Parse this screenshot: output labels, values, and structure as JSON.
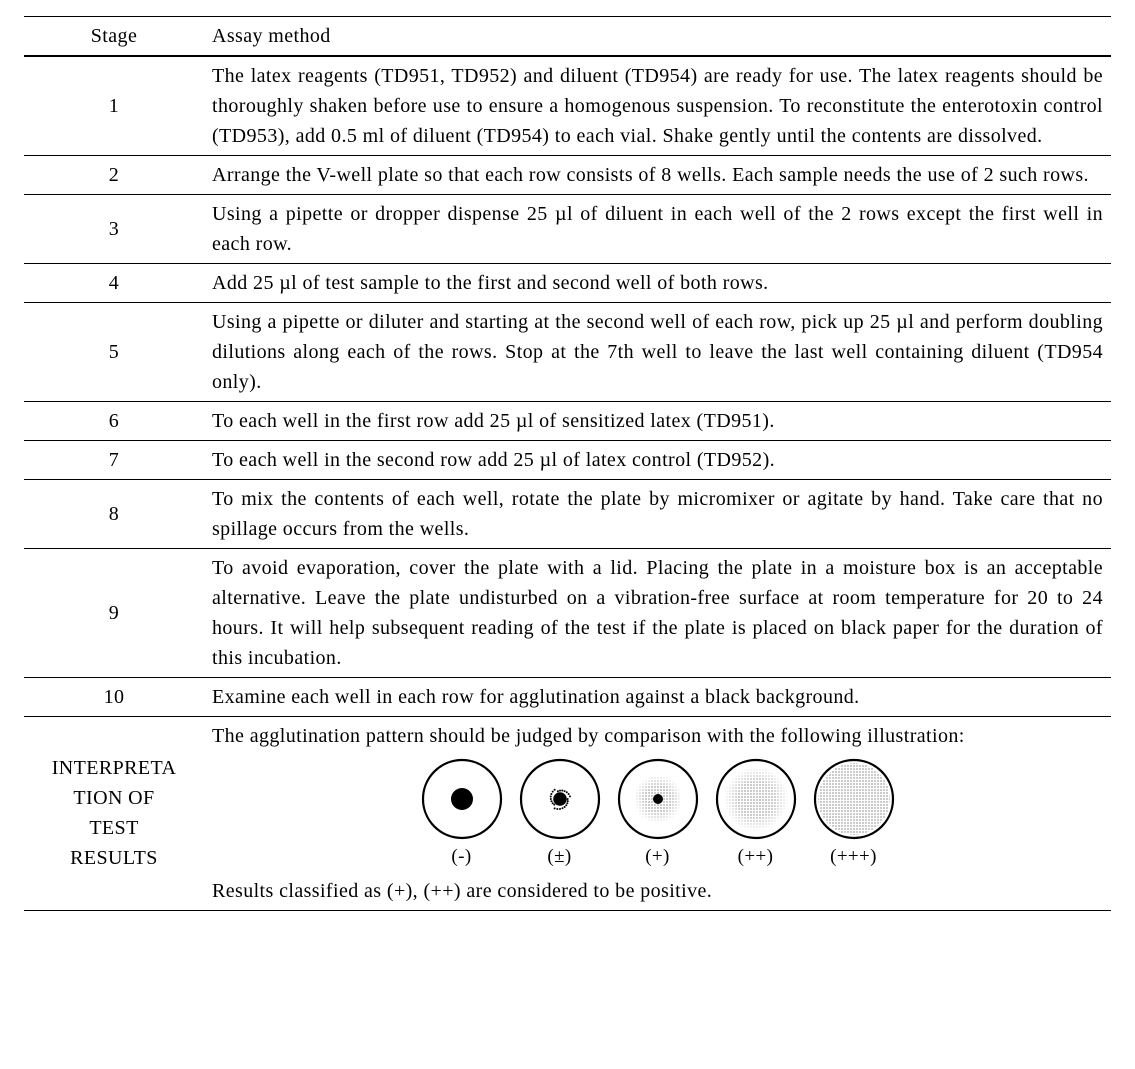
{
  "header": {
    "stage": "Stage",
    "method": "Assay method"
  },
  "rows": [
    {
      "stage": "1",
      "method": "The latex reagents (TD951, TD952) and diluent (TD954) are ready for use. The latex reagents should be thoroughly shaken before use to ensure a homogenous suspension. To reconstitute the enterotoxin control (TD953), add 0.5 ml of diluent (TD954) to each vial. Shake gently until the contents are dissolved."
    },
    {
      "stage": "2",
      "method": "Arrange the V-well plate so that each row consists of 8 wells. Each sample needs the use of 2 such rows."
    },
    {
      "stage": "3",
      "method": "Using a pipette or dropper dispense 25 µl of diluent in each well of the 2 rows except the first well in each row."
    },
    {
      "stage": "4",
      "method": "Add 25 µl of test sample to the first and second well of both rows."
    },
    {
      "stage": "5",
      "method": "Using a pipette or diluter and starting at the second well of each row, pick up 25 µl and perform doubling dilutions along each of the rows. Stop at the 7th well to leave the last well containing diluent (TD954 only)."
    },
    {
      "stage": "6",
      "method": "To each well in the first row add 25 µl of sensitized latex (TD951)."
    },
    {
      "stage": "7",
      "method": "To each well in the second row add 25 µl of latex control (TD952)."
    },
    {
      "stage": "8",
      "method": "To mix the contents of each well, rotate the plate by micromixer or agitate by hand. Take care that no spillage occurs from the wells."
    },
    {
      "stage": "9",
      "method": "To avoid evaporation, cover the plate with a lid. Placing the plate in a moisture box is an acceptable alternative. Leave the plate undisturbed on a vibration-free surface at room temperature for 20 to 24 hours. It will help subsequent reading of the test if the plate is placed on black paper for the duration of this incubation."
    },
    {
      "stage": "10",
      "method": "Examine each well in each row for agglutination against a black background."
    }
  ],
  "interp": {
    "label_line1": "INTERPRETA",
    "label_line2": "TION OF",
    "label_line3": "TEST",
    "label_line4": "RESULTS",
    "intro": "The agglutination pattern should be judged by comparison with the following illustration:",
    "footer": "Results classified as (+), (++) are considered to be positive.",
    "wells": [
      {
        "label": "(-)",
        "dot_r": 11,
        "dot_fuzzy": false,
        "stipple_r": 0,
        "stipple_fade": false
      },
      {
        "label": "(±)",
        "dot_r": 9,
        "dot_fuzzy": true,
        "stipple_r": 0,
        "stipple_fade": false
      },
      {
        "label": "(+)",
        "dot_r": 5,
        "dot_fuzzy": false,
        "stipple_r": 24,
        "stipple_fade": true
      },
      {
        "label": "(++)",
        "dot_r": 0,
        "dot_fuzzy": false,
        "stipple_r": 32,
        "stipple_fade": true
      },
      {
        "label": "(+++)",
        "dot_r": 0,
        "dot_fuzzy": false,
        "stipple_r": 36,
        "stipple_fade": false
      }
    ],
    "svg": {
      "size": 84,
      "ring_outer_r": 39,
      "ring_stroke": 2.2,
      "stipple_spacing": 3.0,
      "stipple_dot_r": 0.55,
      "color_ring": "#000000",
      "color_fill": "#000000",
      "color_bg": "#ffffff"
    }
  }
}
